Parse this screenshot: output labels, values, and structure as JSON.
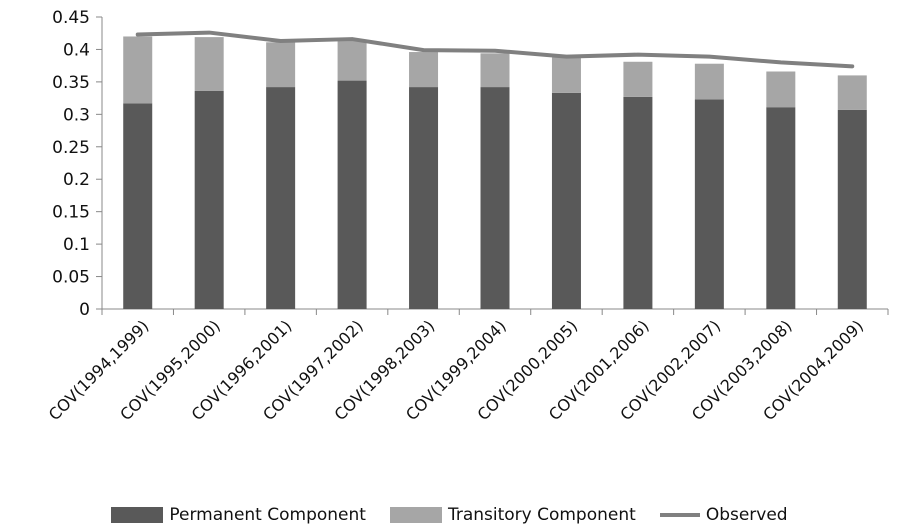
{
  "chart_data": {
    "type": "bar",
    "stacked": true,
    "categories": [
      "COV(1994,1999)",
      "COV(1995,2000)",
      "COV(1996,2001)",
      "COV(1997,2002)",
      "COV(1998,2003)",
      "COV(1999,2004)",
      "COV(2000,2005)",
      "COV(2001,2006)",
      "COV(2002,2007)",
      "COV(2003,2008)",
      "COV(2004,2009)"
    ],
    "series": [
      {
        "name": "Permanent Component",
        "kind": "bar",
        "color": "#595959",
        "values": [
          0.317,
          0.336,
          0.342,
          0.352,
          0.342,
          0.342,
          0.333,
          0.327,
          0.323,
          0.311,
          0.307
        ]
      },
      {
        "name": "Transitory Component",
        "kind": "bar",
        "color": "#a6a6a6",
        "values": [
          0.103,
          0.083,
          0.069,
          0.063,
          0.054,
          0.052,
          0.055,
          0.054,
          0.055,
          0.055,
          0.053
        ]
      },
      {
        "name": "Observed",
        "kind": "line",
        "color": "#808080",
        "values": [
          0.423,
          0.426,
          0.413,
          0.416,
          0.399,
          0.398,
          0.389,
          0.392,
          0.389,
          0.38,
          0.374
        ]
      }
    ],
    "yticks": [
      "0",
      "0.05",
      "0.1",
      "0.15",
      "0.2",
      "0.25",
      "0.3",
      "0.35",
      "0.4",
      "0.45"
    ],
    "ylim": [
      0,
      0.45
    ],
    "grid": false,
    "legend_position": "bottom",
    "title": "",
    "xlabel": "",
    "ylabel": ""
  }
}
